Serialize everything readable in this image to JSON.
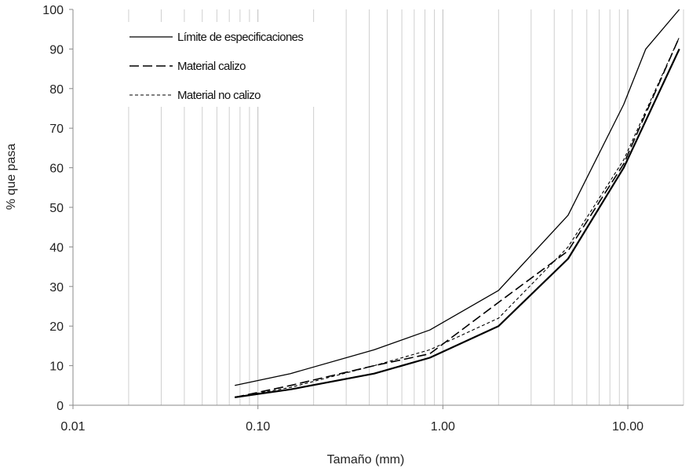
{
  "chart_data": {
    "type": "line",
    "xscale": "log",
    "xlim": [
      0.01,
      20
    ],
    "ylim": [
      0,
      100
    ],
    "xticks": [
      0.01,
      0.1,
      1,
      10
    ],
    "xtick_labels": [
      "0.01",
      "0.10",
      "1.00",
      "10.00"
    ],
    "yticks": [
      0,
      10,
      20,
      30,
      40,
      50,
      60,
      70,
      80,
      90,
      100
    ],
    "xlabel": "Tamaño (mm)",
    "ylabel": "% que pasa",
    "grid": "vertical log gridlines",
    "legend_position": "top-left",
    "series": [
      {
        "name": "Límite de especificaciones",
        "style": "solid-thin",
        "color": "#000000",
        "x": [
          0.075,
          0.15,
          0.425,
          0.85,
          2.0,
          4.75,
          9.5,
          12.5,
          19.0
        ],
        "y": [
          5,
          8,
          14,
          19,
          29,
          48,
          76,
          90,
          100
        ]
      },
      {
        "name": "Límite de especificaciones",
        "style": "solid-thick",
        "color": "#000000",
        "x": [
          0.075,
          0.15,
          0.425,
          0.85,
          2.0,
          4.75,
          9.5,
          19.0
        ],
        "y": [
          2,
          4,
          8,
          12,
          20,
          37,
          60,
          90
        ]
      },
      {
        "name": "Material calizo",
        "style": "long-dash",
        "color": "#000000",
        "x": [
          0.075,
          0.15,
          0.425,
          0.85,
          2.0,
          4.75,
          9.5,
          19.0
        ],
        "y": [
          2,
          5,
          10,
          13,
          26,
          39,
          61,
          93
        ]
      },
      {
        "name": "Material no calizo",
        "style": "short-dash",
        "color": "#000000",
        "x": [
          0.075,
          0.15,
          0.425,
          0.85,
          2.0,
          4.75,
          9.5,
          19.0
        ],
        "y": [
          2,
          4.5,
          10,
          14,
          22,
          40,
          62,
          93
        ]
      }
    ],
    "legend": [
      {
        "label": "Límite de especificaciones",
        "style": "solid-thin"
      },
      {
        "label": "Material calizo",
        "style": "long-dash"
      },
      {
        "label": "Material no calizo",
        "style": "short-dash"
      }
    ]
  }
}
